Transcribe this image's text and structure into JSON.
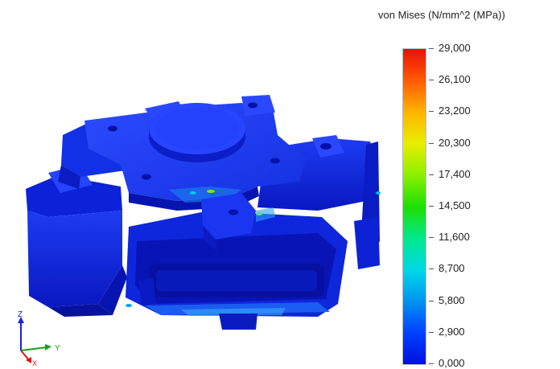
{
  "legend": {
    "title": "von Mises (N/mm^2 (MPa))",
    "ticks": [
      "29,000",
      "26,100",
      "23,200",
      "20,300",
      "17,400",
      "14,500",
      "11,600",
      "8,700",
      "5,800",
      "2,900",
      "0,000"
    ]
  },
  "triad": {
    "z_label": "Z",
    "y_label": "Y",
    "x_label": "X"
  },
  "colors": {
    "model_blue": "#0a1fd4",
    "model_dark": "#0612a6",
    "model_light": "#1e3bf0",
    "max_red": "#e8100a"
  }
}
